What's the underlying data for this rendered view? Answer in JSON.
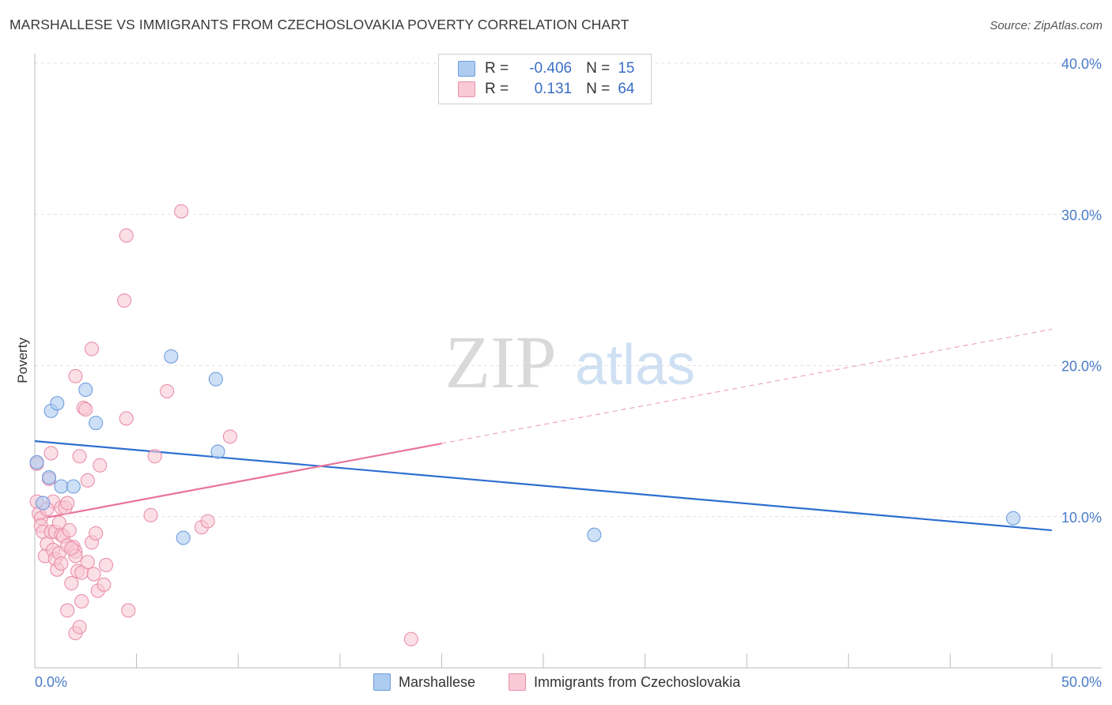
{
  "title": "MARSHALLESE VS IMMIGRANTS FROM CZECHOSLOVAKIA POVERTY CORRELATION CHART",
  "source": "Source: ZipAtlas.com",
  "watermark": {
    "zip": "ZIP",
    "atlas": "atlas"
  },
  "legend": {
    "rows": [
      {
        "r_label": "R =",
        "r_value": "-0.406",
        "n_label": "N =",
        "n_value": "15",
        "color": "#aecbf0",
        "border": "#6f9ede"
      },
      {
        "r_label": "R =",
        "r_value": "0.131",
        "n_label": "N =",
        "n_value": "64",
        "color": "#f9c9d6",
        "border": "#ea8fab"
      }
    ]
  },
  "bottom_legend": [
    "Marshallese",
    "Immigrants from Czechoslovakia"
  ],
  "chart_data": {
    "type": "scatter",
    "xlabel": "",
    "ylabel": "Poverty",
    "xlim": [
      0,
      50
    ],
    "ylim": [
      0,
      40
    ],
    "x_tick_labels": [
      "0.0%",
      "50.0%"
    ],
    "y_ticks": [
      10,
      20,
      30,
      40
    ],
    "y_tick_labels": [
      "10.0%",
      "20.0%",
      "30.0%",
      "40.0%"
    ],
    "grid": true,
    "series": [
      {
        "name": "Marshallese",
        "color": "#aecbf0",
        "edge": "#6f9ede",
        "line_color": "#2d6fd0",
        "trend": {
          "x0": 0,
          "y0": 15.0,
          "x1": 50,
          "y1": 9.1,
          "x_solid_end": 50
        },
        "points": [
          [
            0.1,
            13.6
          ],
          [
            0.4,
            10.9
          ],
          [
            0.7,
            12.6
          ],
          [
            0.8,
            17.0
          ],
          [
            1.1,
            17.5
          ],
          [
            1.3,
            12.0
          ],
          [
            1.9,
            12.0
          ],
          [
            2.5,
            18.4
          ],
          [
            3.0,
            16.2
          ],
          [
            6.7,
            20.6
          ],
          [
            7.3,
            8.6
          ],
          [
            8.9,
            19.1
          ],
          [
            9.0,
            14.3
          ],
          [
            27.5,
            8.8
          ],
          [
            48.1,
            9.9
          ]
        ]
      },
      {
        "name": "Immigrants from Czechoslovakia",
        "color": "#f9c9d6",
        "edge": "#ea8fab",
        "line_color": "#e8739a",
        "trend": {
          "x0": 0,
          "y0": 9.8,
          "x1": 50,
          "y1": 22.4,
          "x_solid_end": 20
        },
        "points": [
          [
            0.1,
            13.5
          ],
          [
            0.1,
            11.0
          ],
          [
            0.2,
            10.2
          ],
          [
            0.3,
            9.9
          ],
          [
            0.3,
            9.4
          ],
          [
            0.4,
            9.0
          ],
          [
            0.5,
            7.4
          ],
          [
            0.6,
            8.2
          ],
          [
            0.7,
            12.5
          ],
          [
            0.8,
            14.2
          ],
          [
            0.8,
            9.0
          ],
          [
            0.9,
            7.8
          ],
          [
            0.9,
            11.0
          ],
          [
            1.0,
            7.2
          ],
          [
            1.0,
            9.0
          ],
          [
            1.1,
            6.5
          ],
          [
            1.2,
            9.6
          ],
          [
            1.2,
            7.6
          ],
          [
            1.3,
            8.8
          ],
          [
            1.3,
            10.6
          ],
          [
            1.4,
            8.7
          ],
          [
            1.5,
            10.6
          ],
          [
            1.6,
            10.9
          ],
          [
            1.6,
            8.1
          ],
          [
            1.6,
            3.8
          ],
          [
            1.7,
            9.1
          ],
          [
            1.8,
            5.6
          ],
          [
            1.9,
            8.0
          ],
          [
            2.0,
            7.7
          ],
          [
            2.0,
            7.4
          ],
          [
            2.0,
            19.3
          ],
          [
            2.0,
            2.3
          ],
          [
            2.1,
            6.4
          ],
          [
            2.2,
            14.0
          ],
          [
            2.2,
            2.7
          ],
          [
            2.3,
            4.4
          ],
          [
            2.3,
            6.3
          ],
          [
            2.4,
            17.2
          ],
          [
            2.5,
            17.1
          ],
          [
            2.6,
            12.4
          ],
          [
            2.6,
            7.0
          ],
          [
            2.8,
            8.3
          ],
          [
            2.8,
            21.1
          ],
          [
            2.9,
            6.2
          ],
          [
            3.1,
            5.1
          ],
          [
            3.2,
            13.4
          ],
          [
            3.4,
            5.5
          ],
          [
            3.5,
            6.8
          ],
          [
            4.4,
            24.3
          ],
          [
            4.5,
            16.5
          ],
          [
            4.5,
            28.6
          ],
          [
            4.6,
            3.8
          ],
          [
            5.9,
            14.0
          ],
          [
            6.5,
            18.3
          ],
          [
            5.7,
            10.1
          ],
          [
            7.2,
            30.2
          ],
          [
            8.2,
            9.3
          ],
          [
            8.5,
            9.7
          ],
          [
            9.6,
            15.3
          ],
          [
            18.5,
            1.9
          ],
          [
            1.3,
            6.9
          ],
          [
            0.6,
            10.5
          ],
          [
            1.8,
            7.9
          ],
          [
            3.0,
            8.9
          ]
        ]
      }
    ]
  }
}
